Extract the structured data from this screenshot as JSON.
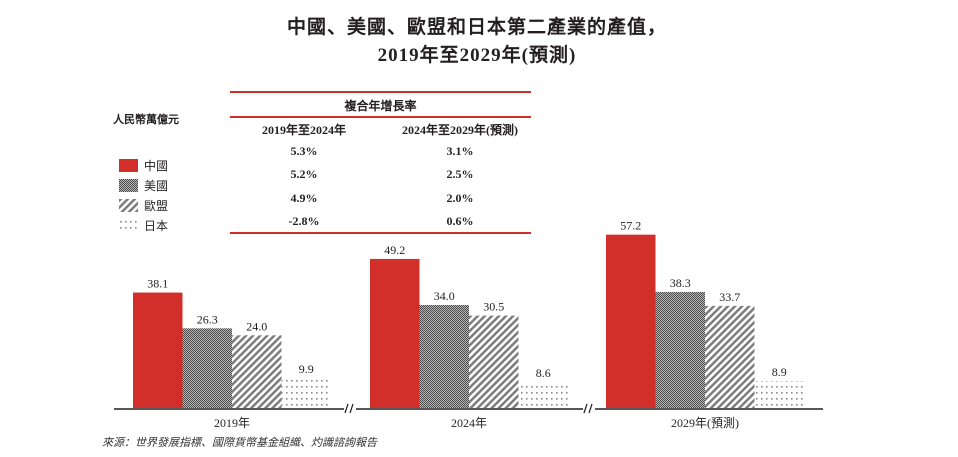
{
  "title_line1": "中國、美國、歐盟和日本第二產業的產值，",
  "title_line2": "2019年至2029年(預測)",
  "unit_label": "人民幣萬億元",
  "cagr_table": {
    "header": "複合年增長率",
    "columns": [
      "2019年至2024年",
      "2024年至2029年(預測)"
    ],
    "rows": [
      {
        "series": "中國",
        "values": [
          "5.3%",
          "3.1%"
        ]
      },
      {
        "series": "美國",
        "values": [
          "5.2%",
          "2.5%"
        ]
      },
      {
        "series": "歐盟",
        "values": [
          "4.9%",
          "2.0%"
        ]
      },
      {
        "series": "日本",
        "values": [
          "-2.8%",
          "0.6%"
        ]
      }
    ]
  },
  "colors": {
    "china": "#d32f2a",
    "usa": "#7a7a7a",
    "eu": "#8c8c8c",
    "japan": "#9a9a9a",
    "rule": "#d32f2a"
  },
  "source": "來源：世界發展指標、國際貨幣基金組織、灼識諮詢報告",
  "chart_data": {
    "type": "bar",
    "title": "中國、美國、歐盟和日本第二產業的產值，2019年至2029年(預測)",
    "xlabel": "",
    "ylabel": "人民幣萬億元",
    "categories": [
      "2019年",
      "2024年",
      "2029年(預測)"
    ],
    "series": [
      {
        "name": "中國",
        "pattern": "solid",
        "values": [
          38.1,
          49.2,
          57.2
        ]
      },
      {
        "name": "美國",
        "pattern": "checker",
        "values": [
          26.3,
          34.0,
          38.3
        ]
      },
      {
        "name": "歐盟",
        "pattern": "diagonal-hatch",
        "values": [
          24.0,
          30.5,
          33.7
        ]
      },
      {
        "name": "日本",
        "pattern": "dots",
        "values": [
          9.9,
          8.6,
          8.9
        ]
      }
    ],
    "data_labels": [
      [
        "38.1",
        "49.2",
        "57.2"
      ],
      [
        "26.3",
        "34.0",
        "38.3"
      ],
      [
        "24.0",
        "30.5",
        "33.7"
      ],
      [
        "9.9",
        "8.6",
        "8.9"
      ]
    ],
    "ylim": [
      0,
      60
    ],
    "grid": false,
    "axis_breaks": true,
    "legend": "top-left"
  }
}
